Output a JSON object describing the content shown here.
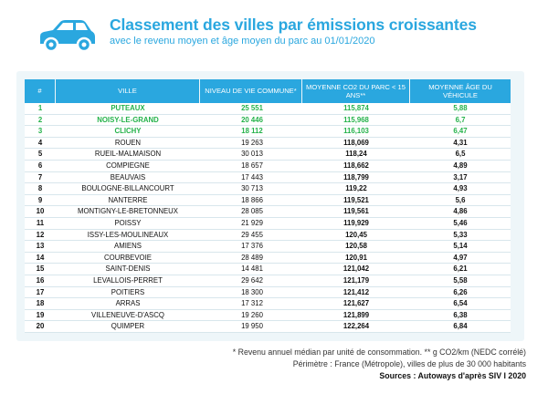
{
  "header": {
    "title": "Classement des villes par émissions croissantes",
    "subtitle": "avec le revenu moyen et âge moyen du parc au 01/01/2020"
  },
  "table": {
    "columns": [
      "#",
      "VILLE",
      "NIVEAU DE VIE COMMUNE*",
      "MOYENNE CO2 DU PARC < 15 ANS**",
      "MOYENNE ÂGE DU VÉHICULE"
    ],
    "rows": [
      {
        "rank": "1",
        "city": "PUTEAUX",
        "income": "25 551",
        "co2": "115,874",
        "age": "5,88",
        "top": true
      },
      {
        "rank": "2",
        "city": "NOISY-LE-GRAND",
        "income": "20 446",
        "co2": "115,968",
        "age": "6,7",
        "top": true
      },
      {
        "rank": "3",
        "city": "CLICHY",
        "income": "18 112",
        "co2": "116,103",
        "age": "6,47",
        "top": true
      },
      {
        "rank": "4",
        "city": "ROUEN",
        "income": "19 263",
        "co2": "118,069",
        "age": "4,31",
        "top": false
      },
      {
        "rank": "5",
        "city": "RUEIL-MALMAISON",
        "income": "30 013",
        "co2": "118,24",
        "age": "6,5",
        "top": false
      },
      {
        "rank": "6",
        "city": "COMPIEGNE",
        "income": "18 657",
        "co2": "118,662",
        "age": "4,89",
        "top": false
      },
      {
        "rank": "7",
        "city": "BEAUVAIS",
        "income": "17 443",
        "co2": "118,799",
        "age": "3,17",
        "top": false
      },
      {
        "rank": "8",
        "city": "BOULOGNE-BILLANCOURT",
        "income": "30 713",
        "co2": "119,22",
        "age": "4,93",
        "top": false
      },
      {
        "rank": "9",
        "city": "NANTERRE",
        "income": "18 866",
        "co2": "119,521",
        "age": "5,6",
        "top": false
      },
      {
        "rank": "10",
        "city": "MONTIGNY-LE-BRETONNEUX",
        "income": "28 085",
        "co2": "119,561",
        "age": "4,86",
        "top": false
      },
      {
        "rank": "11",
        "city": "POISSY",
        "income": "21 929",
        "co2": "119,929",
        "age": "5,46",
        "top": false
      },
      {
        "rank": "12",
        "city": "ISSY-LES-MOULINEAUX",
        "income": "29 455",
        "co2": "120,45",
        "age": "5,33",
        "top": false
      },
      {
        "rank": "13",
        "city": "AMIENS",
        "income": "17 376",
        "co2": "120,58",
        "age": "5,14",
        "top": false
      },
      {
        "rank": "14",
        "city": "COURBEVOIE",
        "income": "28 489",
        "co2": "120,91",
        "age": "4,97",
        "top": false
      },
      {
        "rank": "15",
        "city": "SAINT-DENIS",
        "income": "14 481",
        "co2": "121,042",
        "age": "6,21",
        "top": false
      },
      {
        "rank": "16",
        "city": "LEVALLOIS-PERRET",
        "income": "29 642",
        "co2": "121,179",
        "age": "5,58",
        "top": false
      },
      {
        "rank": "17",
        "city": "POITIERS",
        "income": "18 300",
        "co2": "121,412",
        "age": "6,26",
        "top": false
      },
      {
        "rank": "18",
        "city": "ARRAS",
        "income": "17 312",
        "co2": "121,627",
        "age": "6,54",
        "top": false
      },
      {
        "rank": "19",
        "city": "VILLENEUVE-D'ASCQ",
        "income": "19 260",
        "co2": "121,899",
        "age": "6,38",
        "top": false
      },
      {
        "rank": "20",
        "city": "QUIMPER",
        "income": "19 950",
        "co2": "122,264",
        "age": "6,84",
        "top": false
      }
    ]
  },
  "footnotes": {
    "line1": "* Revenu annuel médian par unité de consommation. **  g CO2/km (NEDC corrélé)",
    "line2": "Périmètre : France (Métropole), villes de plus de 30 000 habitants",
    "source": "Sources : Autoways d'après SIV  I  2020"
  },
  "colors": {
    "accent": "#2aa7df",
    "top3": "#24b24a",
    "panel": "#eef6f9"
  },
  "icons": {
    "logo": "car-icon"
  }
}
